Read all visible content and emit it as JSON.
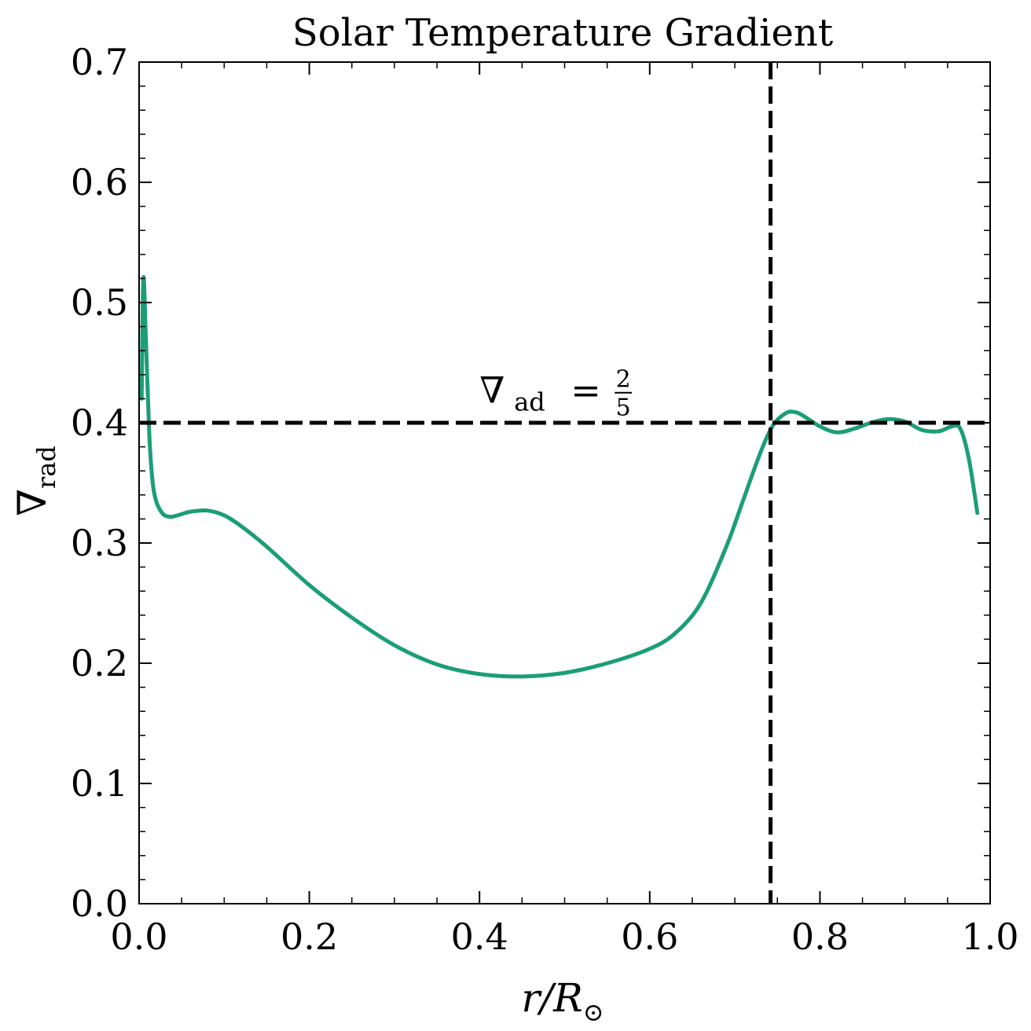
{
  "chart_data": {
    "type": "line",
    "title": "Solar Temperature Gradient",
    "xlabel": {
      "main": "r/R",
      "sub": "⊙"
    },
    "ylabel": {
      "main": "∇",
      "sub": "rad"
    },
    "xlim": [
      0.0,
      1.0
    ],
    "ylim": [
      0.0,
      0.7
    ],
    "xticks": [
      0.0,
      0.2,
      0.4,
      0.6,
      0.8,
      1.0
    ],
    "xtick_labels": [
      "0.0",
      "0.2",
      "0.4",
      "0.6",
      "0.8",
      "1.0"
    ],
    "yticks": [
      0.0,
      0.1,
      0.2,
      0.3,
      0.4,
      0.5,
      0.6,
      0.7
    ],
    "ytick_labels": [
      "0.0",
      "0.1",
      "0.2",
      "0.3",
      "0.4",
      "0.5",
      "0.6",
      "0.7"
    ],
    "x_minor_step": 0.05,
    "y_minor_step": 0.02,
    "grid": false,
    "series": [
      {
        "color": "#1b9e77",
        "x": [
          0.003,
          0.005,
          0.008,
          0.012,
          0.016,
          0.02,
          0.025,
          0.03,
          0.035,
          0.04,
          0.05,
          0.06,
          0.08,
          0.1,
          0.12,
          0.15,
          0.2,
          0.25,
          0.3,
          0.35,
          0.4,
          0.45,
          0.5,
          0.55,
          0.6,
          0.63,
          0.66,
          0.69,
          0.71,
          0.73,
          0.745,
          0.76,
          0.77,
          0.78,
          0.8,
          0.82,
          0.84,
          0.86,
          0.88,
          0.9,
          0.92,
          0.94,
          0.955,
          0.965,
          0.975,
          0.985
        ],
        "y": [
          0.42,
          0.52,
          0.47,
          0.39,
          0.35,
          0.335,
          0.327,
          0.323,
          0.322,
          0.322,
          0.324,
          0.326,
          0.327,
          0.323,
          0.314,
          0.297,
          0.265,
          0.238,
          0.215,
          0.199,
          0.191,
          0.189,
          0.192,
          0.2,
          0.212,
          0.225,
          0.25,
          0.297,
          0.336,
          0.375,
          0.398,
          0.408,
          0.409,
          0.406,
          0.397,
          0.392,
          0.395,
          0.4,
          0.403,
          0.401,
          0.394,
          0.393,
          0.397,
          0.395,
          0.37,
          0.325
        ]
      }
    ],
    "hlines": [
      {
        "y": 0.4,
        "style": "dashed",
        "color": "#000000"
      }
    ],
    "vlines": [
      {
        "x": 0.742,
        "style": "dashed",
        "color": "#000000"
      }
    ],
    "annotations": [
      {
        "x": 0.4,
        "y": 0.41,
        "main": "∇",
        "sub": "ad",
        "eq": "=",
        "num": "2",
        "den": "5"
      }
    ]
  }
}
